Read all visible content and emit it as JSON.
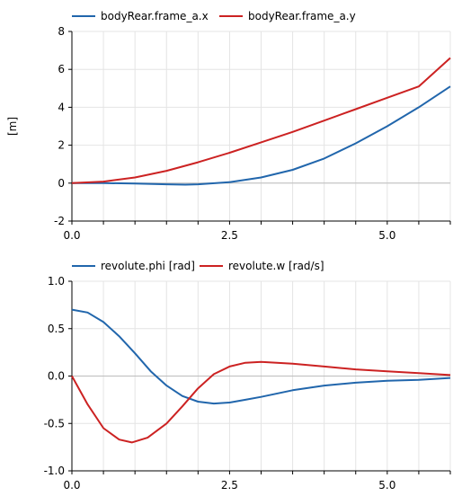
{
  "chart_data": [
    {
      "type": "line",
      "title": "",
      "xlabel": "",
      "ylabel": "[m]",
      "xlim": [
        0,
        6
      ],
      "ylim": [
        -2,
        8
      ],
      "x_ticks": [
        "0.0",
        "2.5",
        "5.0"
      ],
      "x_tick_values": [
        0,
        2.5,
        5
      ],
      "y_ticks": [
        "-2",
        "0",
        "2",
        "4",
        "6",
        "8"
      ],
      "y_tick_values": [
        -2,
        0,
        2,
        4,
        6,
        8
      ],
      "grid": true,
      "legend_position": "top-left",
      "series": [
        {
          "name": "bodyRear.frame_a.x",
          "color": "#2166ac",
          "x": [
            0,
            0.5,
            1.0,
            1.5,
            1.8,
            2.0,
            2.5,
            3.0,
            3.5,
            4.0,
            4.5,
            5.0,
            5.5,
            6.0
          ],
          "values": [
            0,
            0,
            -0.02,
            -0.06,
            -0.08,
            -0.06,
            0.05,
            0.3,
            0.7,
            1.3,
            2.1,
            3.0,
            4.0,
            5.1
          ]
        },
        {
          "name": "bodyRear.frame_a.y",
          "color": "#cc2222",
          "x": [
            0,
            0.5,
            1.0,
            1.5,
            2.0,
            2.5,
            3.0,
            3.5,
            4.0,
            4.5,
            5.0,
            5.5,
            6.0
          ],
          "values": [
            0,
            0.08,
            0.3,
            0.65,
            1.1,
            1.6,
            2.15,
            2.7,
            3.3,
            3.9,
            4.5,
            5.1,
            6.6
          ]
        }
      ]
    },
    {
      "type": "line",
      "title": "",
      "xlabel": "",
      "ylabel": "",
      "xlim": [
        0,
        6
      ],
      "ylim": [
        -1,
        1
      ],
      "x_ticks": [
        "0.0",
        "2.5",
        "5.0"
      ],
      "x_tick_values": [
        0,
        2.5,
        5
      ],
      "y_ticks": [
        "-1.0",
        "-0.5",
        "0.0",
        "0.5",
        "1.0"
      ],
      "y_tick_values": [
        -1,
        -0.5,
        0,
        0.5,
        1
      ],
      "grid": true,
      "legend_position": "top-left",
      "series": [
        {
          "name": "revolute.phi [rad]",
          "color": "#2166ac",
          "x": [
            0,
            0.25,
            0.5,
            0.75,
            1.0,
            1.25,
            1.5,
            1.75,
            2.0,
            2.25,
            2.5,
            2.75,
            3.0,
            3.5,
            4.0,
            4.5,
            5.0,
            5.5,
            6.0
          ],
          "values": [
            0.7,
            0.67,
            0.57,
            0.42,
            0.24,
            0.05,
            -0.1,
            -0.21,
            -0.27,
            -0.29,
            -0.28,
            -0.25,
            -0.22,
            -0.15,
            -0.1,
            -0.07,
            -0.05,
            -0.04,
            -0.02
          ]
        },
        {
          "name": "revolute.w [rad/s]",
          "color": "#cc2222",
          "x": [
            0,
            0.25,
            0.5,
            0.75,
            0.95,
            1.2,
            1.5,
            1.75,
            2.0,
            2.25,
            2.5,
            2.75,
            3.0,
            3.25,
            3.5,
            4.0,
            4.5,
            5.0,
            5.5,
            6.0
          ],
          "values": [
            0,
            -0.3,
            -0.55,
            -0.67,
            -0.7,
            -0.65,
            -0.5,
            -0.32,
            -0.13,
            0.02,
            0.1,
            0.14,
            0.15,
            0.14,
            0.13,
            0.1,
            0.07,
            0.05,
            0.03,
            0.01
          ]
        }
      ]
    }
  ]
}
